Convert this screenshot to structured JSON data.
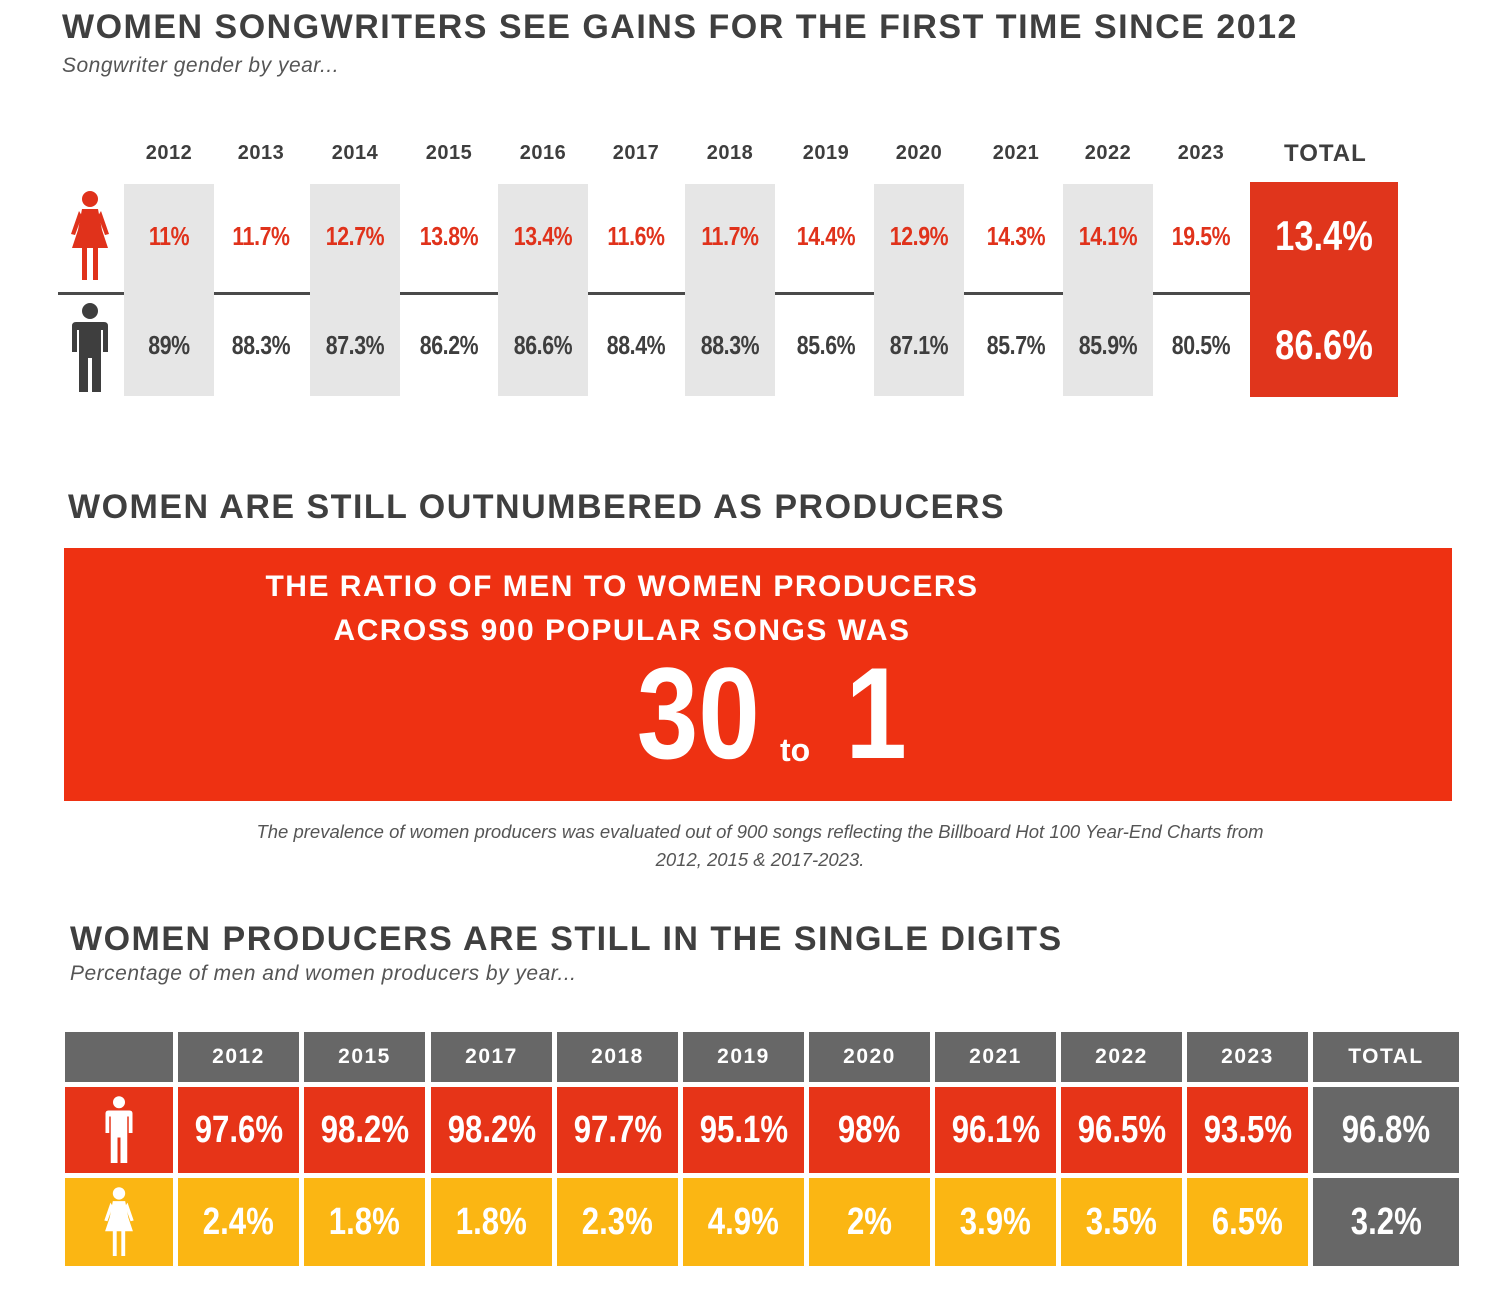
{
  "section1": {
    "title": "WOMEN SONGWRITERS SEE GAINS FOR THE FIRST TIME SINCE 2012",
    "subtitle": "Songwriter gender by year...",
    "icons": {
      "female": "female-figure-icon",
      "male": "male-figure-icon"
    },
    "colors": {
      "female": "#e0321b",
      "male": "#3e3e3e",
      "total_bg": "#e0351c",
      "shade": "#e6e6e6"
    }
  },
  "section2": {
    "title": "WOMEN ARE STILL OUTNUMBERED AS PRODUCERS",
    "line1": "THE RATIO OF MEN TO WOMEN PRODUCERS",
    "line2": "ACROSS 900 POPULAR SONGS WAS",
    "ratio_left": "30",
    "ratio_mid": "to",
    "ratio_right": "1",
    "note_line1": "The prevalence of women producers was evaluated out of 900 songs reflecting the Billboard Hot 100 Year-End Charts from",
    "note_line2": "2012, 2015 &  2017-2023.",
    "colors": {
      "box": "#ee3112"
    }
  },
  "section3": {
    "title": "WOMEN PRODUCERS ARE STILL IN THE SINGLE DIGITS",
    "subtitle": "Percentage of men and women producers by year...",
    "colors": {
      "header": "#676767",
      "men": "#e63418",
      "women": "#fbb613"
    }
  },
  "chart_data": [
    {
      "type": "table",
      "title": "WOMEN SONGWRITERS SEE GAINS FOR THE FIRST TIME SINCE 2012",
      "subtitle": "Songwriter gender by year...",
      "categories": [
        "2012",
        "2013",
        "2014",
        "2015",
        "2016",
        "2017",
        "2018",
        "2019",
        "2020",
        "2021",
        "2022",
        "2023"
      ],
      "total_label": "TOTAL",
      "series": [
        {
          "name": "women",
          "values": [
            11,
            11.7,
            12.7,
            13.8,
            13.4,
            11.6,
            11.7,
            14.4,
            12.9,
            14.3,
            14.1,
            19.5
          ],
          "total": 13.4
        },
        {
          "name": "men",
          "values": [
            89,
            88.3,
            87.3,
            86.2,
            86.6,
            88.4,
            88.3,
            85.6,
            87.1,
            85.7,
            85.9,
            80.5
          ],
          "total": 86.6
        }
      ]
    },
    {
      "type": "table",
      "title": "WOMEN PRODUCERS ARE STILL IN THE SINGLE DIGITS",
      "subtitle": "Percentage of men and women producers by year...",
      "categories": [
        "2012",
        "2015",
        "2017",
        "2018",
        "2019",
        "2020",
        "2021",
        "2022",
        "2023"
      ],
      "total_label": "TOTAL",
      "series": [
        {
          "name": "men",
          "values": [
            97.6,
            98.2,
            98.2,
            97.7,
            95.1,
            98,
            96.1,
            96.5,
            93.5
          ],
          "total": 96.8
        },
        {
          "name": "women",
          "values": [
            2.4,
            1.8,
            1.8,
            2.3,
            4.9,
            2,
            3.9,
            3.5,
            6.5
          ],
          "total": 3.2
        }
      ]
    }
  ]
}
